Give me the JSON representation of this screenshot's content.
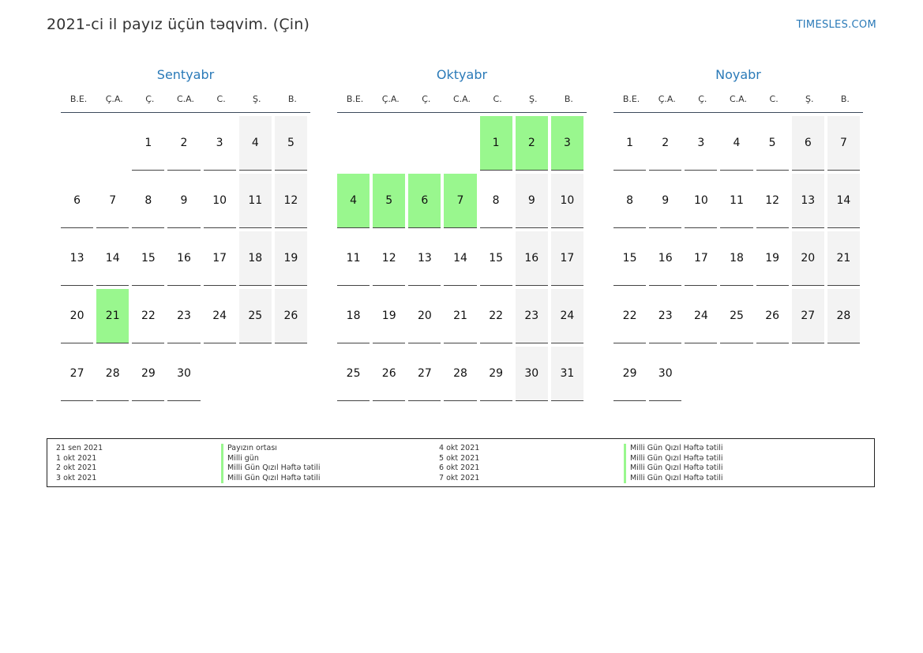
{
  "header": {
    "title": "2021-ci il payız üçün təqvim. (Çin)",
    "brand": "TIMESLES.COM"
  },
  "weekdays": [
    "B.E.",
    "Ç.A.",
    "Ç.",
    "C.A.",
    "C.",
    "Ş.",
    "B."
  ],
  "months": [
    {
      "name": "Sentyabr",
      "weeks": [
        [
          "",
          "",
          "1",
          "2",
          "3",
          "4",
          "5"
        ],
        [
          "6",
          "7",
          "8",
          "9",
          "10",
          "11",
          "12"
        ],
        [
          "13",
          "14",
          "15",
          "16",
          "17",
          "18",
          "19"
        ],
        [
          "20",
          "21",
          "22",
          "23",
          "24",
          "25",
          "26"
        ],
        [
          "27",
          "28",
          "29",
          "30",
          "",
          "",
          ""
        ]
      ],
      "holidays": [
        "21"
      ]
    },
    {
      "name": "Oktyabr",
      "weeks": [
        [
          "",
          "",
          "",
          "",
          "1",
          "2",
          "3"
        ],
        [
          "4",
          "5",
          "6",
          "7",
          "8",
          "9",
          "10"
        ],
        [
          "11",
          "12",
          "13",
          "14",
          "15",
          "16",
          "17"
        ],
        [
          "18",
          "19",
          "20",
          "21",
          "22",
          "23",
          "24"
        ],
        [
          "25",
          "26",
          "27",
          "28",
          "29",
          "30",
          "31"
        ]
      ],
      "holidays": [
        "1",
        "2",
        "3",
        "4",
        "5",
        "6",
        "7"
      ]
    },
    {
      "name": "Noyabr",
      "weeks": [
        [
          "1",
          "2",
          "3",
          "4",
          "5",
          "6",
          "7"
        ],
        [
          "8",
          "9",
          "10",
          "11",
          "12",
          "13",
          "14"
        ],
        [
          "15",
          "16",
          "17",
          "18",
          "19",
          "20",
          "21"
        ],
        [
          "22",
          "23",
          "24",
          "25",
          "26",
          "27",
          "28"
        ],
        [
          "29",
          "30",
          "",
          "",
          "",
          "",
          ""
        ]
      ],
      "holidays": []
    }
  ],
  "holiday_color": "#99f78e",
  "weekend_color": "#f3f3f3",
  "accent_color": "#2a7ab8",
  "legend": {
    "left": [
      {
        "date": "21 sen 2021",
        "name": "Payızın ortası"
      },
      {
        "date": "1 okt 2021",
        "name": "Milli gün"
      },
      {
        "date": "2 okt 2021",
        "name": "Milli Gün Qızıl Həftə tətili"
      },
      {
        "date": "3 okt 2021",
        "name": "Milli Gün Qızıl Həftə tətili"
      }
    ],
    "right": [
      {
        "date": "4 okt 2021",
        "name": "Milli Gün Qızıl Həftə tətili"
      },
      {
        "date": "5 okt 2021",
        "name": "Milli Gün Qızıl Həftə tətili"
      },
      {
        "date": "6 okt 2021",
        "name": "Milli Gün Qızıl Həftə tətili"
      },
      {
        "date": "7 okt 2021",
        "name": "Milli Gün Qızıl Həftə tətili"
      }
    ]
  }
}
